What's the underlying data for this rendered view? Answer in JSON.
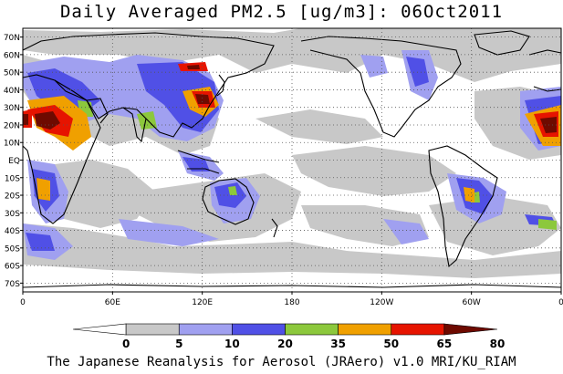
{
  "title": "Daily Averaged PM2.5 [ug/m3]: 06Oct2011",
  "credit": "The Japanese Reanalysis for Aerosol (JRAero) v1.0 MRI/KU_RIAM",
  "map": {
    "projection": "equirectangular",
    "lon_range": [
      0,
      360
    ],
    "lat_range": [
      -75,
      75
    ],
    "lat_labels": [
      "70N",
      "60N",
      "50N",
      "40N",
      "30N",
      "20N",
      "10N",
      "EQ",
      "10S",
      "20S",
      "30S",
      "40S",
      "50S",
      "60S",
      "70S"
    ],
    "lon_labels": [
      "0",
      "60E",
      "120E",
      "180",
      "120W",
      "60W",
      "0"
    ],
    "grid": "dotted"
  },
  "legend": {
    "levels": [
      "0",
      "5",
      "10",
      "20",
      "35",
      "50",
      "65",
      "80"
    ],
    "colors": [
      "#ffffff",
      "#c8c8c8",
      "#a0a0f0",
      "#5050e6",
      "#8cc83c",
      "#f0a000",
      "#e61400",
      "#6e0a00"
    ]
  },
  "colors": {
    "land_outline": "#000000",
    "grid": "#555555"
  }
}
